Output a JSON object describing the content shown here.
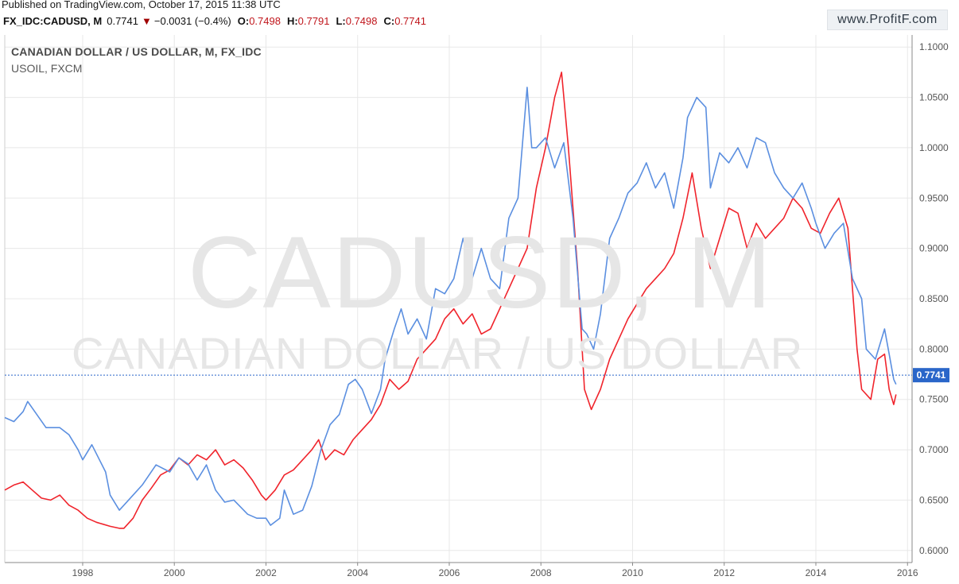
{
  "header": {
    "published": "Published on TradingView.com, October 17, 2015 11:38 UTC",
    "symbol": "FX_IDC:CADUSD, M",
    "last": "0.7741",
    "change": "−0.0031 (−0.4%)",
    "open_label": "O:",
    "open": "0.7498",
    "high_label": "H:",
    "high": "0.7791",
    "low_label": "L:",
    "low": "0.7498",
    "close_label": "C:",
    "close": "0.7741",
    "brand": "www.ProfitF.com"
  },
  "legend": {
    "main": "CANADIAN DOLLAR / US DOLLAR, M, FX_IDC",
    "overlay": "USOIL, FXCM"
  },
  "watermark": {
    "line1": "CADUSD, M",
    "line2": "CANADIAN DOLLAR / US DOLLAR"
  },
  "colors": {
    "cadusd": "#5b8fe0",
    "usoil": "#f0242c",
    "grid": "#e8e8e8",
    "current_line": "#2a66c9",
    "axis_text": "#555555"
  },
  "chart_data": {
    "type": "line",
    "xlim": [
      1996.3,
      2016.1
    ],
    "ylim": [
      0.588,
      1.112
    ],
    "x_ticks": [
      "1998",
      "2000",
      "2002",
      "2004",
      "2006",
      "2008",
      "2010",
      "2012",
      "2014",
      "2016"
    ],
    "y_ticks": [
      "1.1000",
      "1.0500",
      "1.0000",
      "0.9500",
      "0.9000",
      "0.8500",
      "0.8000",
      "0.7500",
      "0.7000",
      "0.6500",
      "0.6000"
    ],
    "current_value": 0.7741,
    "current_label": "0.7741",
    "series": [
      {
        "key": "cadusd",
        "x": [
          1996.3,
          1996.5,
          1996.7,
          1996.8,
          1997.0,
          1997.2,
          1997.5,
          1997.7,
          1997.9,
          1998.0,
          1998.2,
          1998.5,
          1998.6,
          1998.8,
          1999.1,
          1999.3,
          1999.6,
          1999.9,
          2000.1,
          2000.3,
          2000.5,
          2000.7,
          2000.9,
          2001.1,
          2001.3,
          2001.6,
          2001.8,
          2002.0,
          2002.1,
          2002.3,
          2002.4,
          2002.6,
          2002.8,
          2003.0,
          2003.2,
          2003.4,
          2003.6,
          2003.8,
          2003.95,
          2004.1,
          2004.3,
          2004.5,
          2004.6,
          2004.8,
          2004.95,
          2005.1,
          2005.3,
          2005.5,
          2005.7,
          2005.9,
          2006.1,
          2006.3,
          2006.5,
          2006.7,
          2006.9,
          2007.1,
          2007.3,
          2007.5,
          2007.7,
          2007.8,
          2007.9,
          2008.1,
          2008.3,
          2008.5,
          2008.7,
          2008.9,
          2009.0,
          2009.15,
          2009.3,
          2009.5,
          2009.7,
          2009.9,
          2010.1,
          2010.3,
          2010.5,
          2010.7,
          2010.9,
          2011.1,
          2011.2,
          2011.4,
          2011.6,
          2011.7,
          2011.9,
          2012.1,
          2012.3,
          2012.5,
          2012.7,
          2012.9,
          2013.1,
          2013.3,
          2013.5,
          2013.7,
          2013.9,
          2014.0,
          2014.2,
          2014.4,
          2014.6,
          2014.8,
          2015.0,
          2015.1,
          2015.3,
          2015.5,
          2015.6,
          2015.7,
          2015.75
        ],
        "y": [
          0.732,
          0.728,
          0.738,
          0.748,
          0.735,
          0.722,
          0.722,
          0.715,
          0.7,
          0.69,
          0.705,
          0.678,
          0.655,
          0.64,
          0.655,
          0.665,
          0.685,
          0.678,
          0.692,
          0.686,
          0.67,
          0.685,
          0.66,
          0.648,
          0.65,
          0.636,
          0.632,
          0.632,
          0.625,
          0.632,
          0.66,
          0.636,
          0.64,
          0.664,
          0.7,
          0.725,
          0.735,
          0.765,
          0.77,
          0.76,
          0.736,
          0.76,
          0.79,
          0.82,
          0.84,
          0.815,
          0.83,
          0.81,
          0.86,
          0.855,
          0.87,
          0.91,
          0.87,
          0.9,
          0.87,
          0.86,
          0.93,
          0.95,
          1.06,
          1.0,
          1.0,
          1.01,
          0.98,
          1.005,
          0.93,
          0.82,
          0.815,
          0.8,
          0.835,
          0.91,
          0.93,
          0.955,
          0.965,
          0.985,
          0.96,
          0.975,
          0.94,
          0.99,
          1.03,
          1.05,
          1.04,
          0.96,
          0.995,
          0.985,
          1.0,
          0.98,
          1.01,
          1.005,
          0.975,
          0.96,
          0.95,
          0.965,
          0.94,
          0.925,
          0.9,
          0.915,
          0.925,
          0.87,
          0.85,
          0.8,
          0.79,
          0.82,
          0.795,
          0.77,
          0.765
        ],
        "name": ""
      },
      {
        "key": "usoil",
        "x": [
          1996.3,
          1996.5,
          1996.7,
          1996.9,
          1997.1,
          1997.3,
          1997.5,
          1997.7,
          1997.9,
          1998.1,
          1998.3,
          1998.6,
          1998.8,
          1998.9,
          1999.1,
          1999.3,
          1999.5,
          1999.7,
          1999.9,
          2000.1,
          2000.3,
          2000.5,
          2000.7,
          2000.9,
          2001.1,
          2001.3,
          2001.5,
          2001.7,
          2001.9,
          2002.0,
          2002.2,
          2002.4,
          2002.6,
          2002.8,
          2003.0,
          2003.15,
          2003.3,
          2003.5,
          2003.7,
          2003.9,
          2004.1,
          2004.3,
          2004.5,
          2004.7,
          2004.9,
          2005.1,
          2005.3,
          2005.5,
          2005.7,
          2005.9,
          2006.1,
          2006.3,
          2006.5,
          2006.7,
          2006.9,
          2007.1,
          2007.3,
          2007.5,
          2007.7,
          2007.9,
          2008.1,
          2008.3,
          2008.45,
          2008.6,
          2008.8,
          2008.95,
          2009.1,
          2009.3,
          2009.5,
          2009.7,
          2009.9,
          2010.1,
          2010.3,
          2010.5,
          2010.7,
          2010.9,
          2011.1,
          2011.3,
          2011.5,
          2011.7,
          2011.9,
          2012.1,
          2012.3,
          2012.5,
          2012.7,
          2012.9,
          2013.1,
          2013.3,
          2013.5,
          2013.7,
          2013.9,
          2014.1,
          2014.3,
          2014.5,
          2014.7,
          2014.9,
          2015.0,
          2015.2,
          2015.35,
          2015.5,
          2015.6,
          2015.7,
          2015.75
        ],
        "y": [
          0.66,
          0.665,
          0.668,
          0.66,
          0.652,
          0.65,
          0.655,
          0.645,
          0.64,
          0.632,
          0.628,
          0.624,
          0.622,
          0.622,
          0.632,
          0.65,
          0.662,
          0.675,
          0.68,
          0.692,
          0.685,
          0.695,
          0.69,
          0.7,
          0.685,
          0.69,
          0.682,
          0.67,
          0.655,
          0.65,
          0.66,
          0.675,
          0.68,
          0.69,
          0.7,
          0.71,
          0.69,
          0.7,
          0.695,
          0.71,
          0.72,
          0.73,
          0.745,
          0.77,
          0.76,
          0.768,
          0.79,
          0.8,
          0.81,
          0.83,
          0.84,
          0.825,
          0.835,
          0.815,
          0.82,
          0.84,
          0.86,
          0.88,
          0.9,
          0.96,
          1.0,
          1.05,
          1.075,
          1.0,
          0.88,
          0.76,
          0.74,
          0.76,
          0.79,
          0.81,
          0.83,
          0.845,
          0.86,
          0.87,
          0.88,
          0.895,
          0.93,
          0.975,
          0.92,
          0.88,
          0.91,
          0.94,
          0.935,
          0.9,
          0.925,
          0.91,
          0.92,
          0.93,
          0.95,
          0.94,
          0.92,
          0.915,
          0.935,
          0.95,
          0.92,
          0.8,
          0.76,
          0.75,
          0.79,
          0.795,
          0.76,
          0.745,
          0.755
        ],
        "name": ""
      }
    ]
  }
}
